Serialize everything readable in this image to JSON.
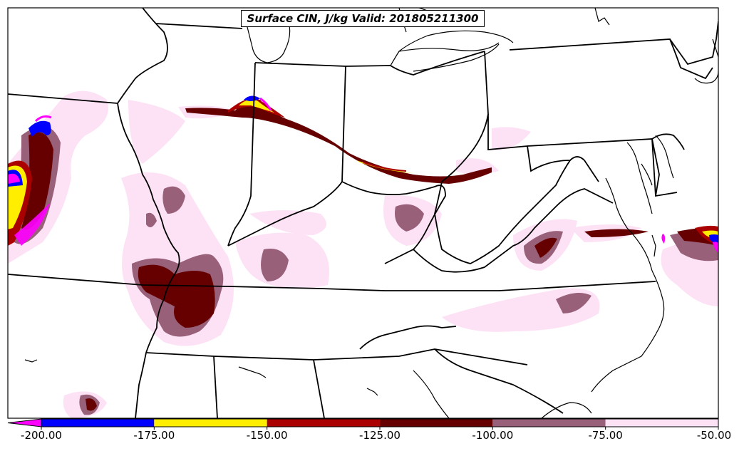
{
  "title": "Surface CIN, J/kg Valid: 201805211300",
  "colorbar": {
    "ticks": [
      "-200.00",
      "-175.00",
      "-150.00",
      "-125.00",
      "-100.00",
      "-75.00",
      "-50.00"
    ],
    "bins": [
      {
        "from": -200,
        "to": -175,
        "color": "#0000ff"
      },
      {
        "from": -175,
        "to": -150,
        "color": "#ffee00"
      },
      {
        "from": -150,
        "to": -125,
        "color": "#aa0000"
      },
      {
        "from": -125,
        "to": -100,
        "color": "#660000"
      },
      {
        "from": -100,
        "to": -75,
        "color": "#99607a"
      },
      {
        "from": -75,
        "to": -50,
        "color": "#fde2f6"
      }
    ],
    "under_color": "#ff00ff"
  },
  "colors": {
    "lightest": "#fde2f6",
    "mauve": "#99607a",
    "dark_red": "#660000",
    "red": "#aa0000",
    "yellow": "#ffee00",
    "blue": "#0000ff",
    "magenta": "#ff00ff"
  }
}
